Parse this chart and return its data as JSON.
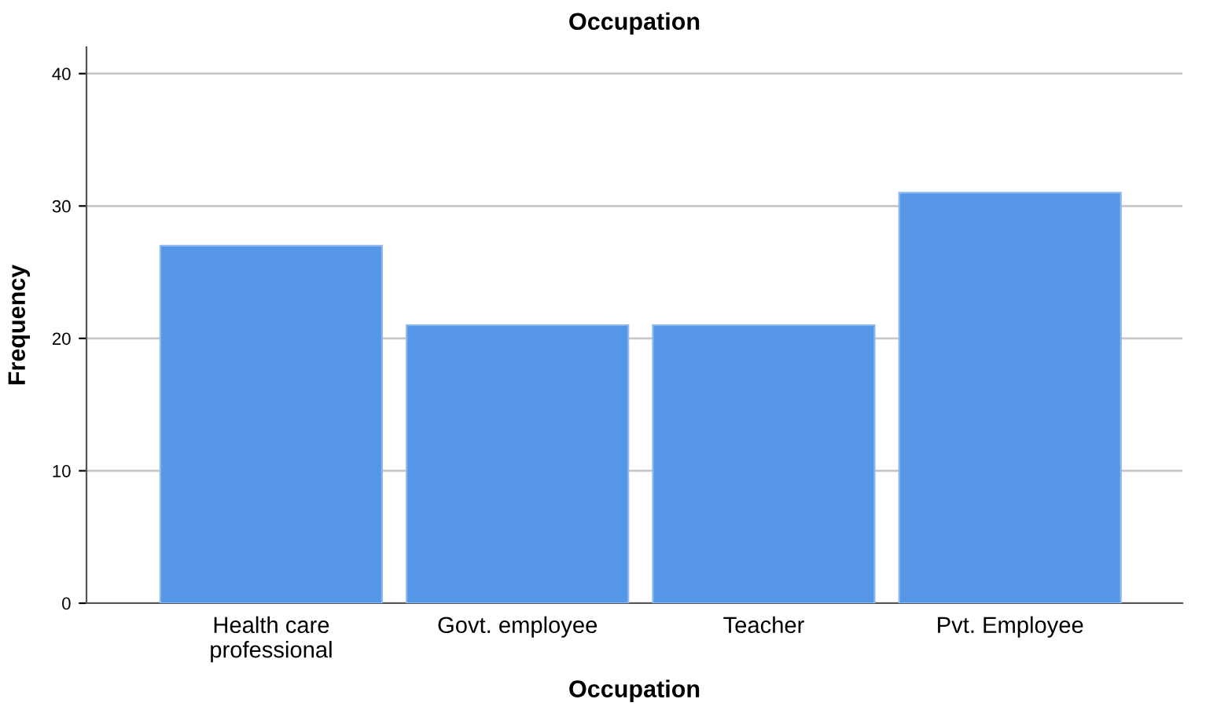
{
  "chart_data": {
    "type": "bar",
    "title": "Occupation",
    "xlabel": "Occupation",
    "ylabel": "Frequency",
    "categories": [
      "Health care\nprofessional",
      "Govt. employee",
      "Teacher",
      "Pvt. Employee"
    ],
    "values": [
      27,
      21,
      21,
      31
    ],
    "color": "#5596e6",
    "ylim": [
      0,
      42
    ],
    "yticks": [
      0,
      10,
      20,
      30,
      40
    ],
    "grid": "y",
    "legend": false
  }
}
